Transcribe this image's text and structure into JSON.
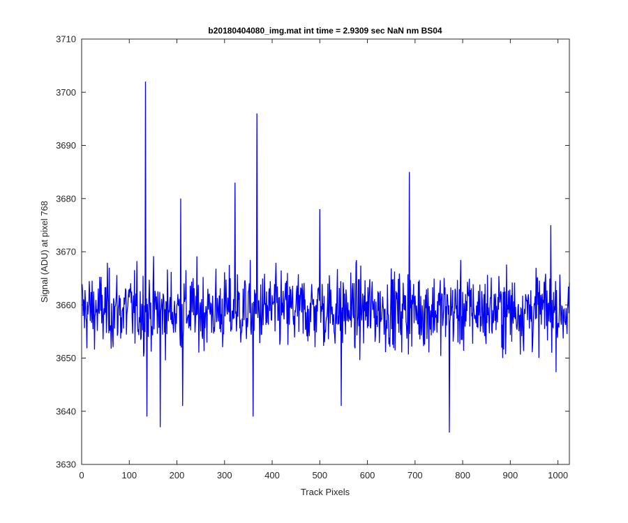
{
  "chart_data": {
    "type": "line",
    "title": "b20180404080_img.mat int time = 2.9309 sec  NaN nm BS04",
    "xlabel": "Track Pixels",
    "ylabel": "Signal (ADU) at pixel 768",
    "xlim": [
      0,
      1024
    ],
    "ylim": [
      3630,
      3710
    ],
    "xticks": [
      "0",
      "100",
      "200",
      "300",
      "400",
      "500",
      "600",
      "700",
      "800",
      "900",
      "1000"
    ],
    "yticks": [
      "3630",
      "3640",
      "3650",
      "3660",
      "3670",
      "3680",
      "3690",
      "3700",
      "3710"
    ],
    "grid": false,
    "line_color": "#0000ff",
    "series": [
      {
        "x_start": 1,
        "x_step": 1,
        "points": 1024,
        "baseline_estimate": 3659,
        "noise_range_typical": [
          3645,
          3673
        ],
        "notable_points": [
          {
            "x": 134,
            "y": 3702
          },
          {
            "x": 137,
            "y": 3639
          },
          {
            "x": 165,
            "y": 3637
          },
          {
            "x": 208,
            "y": 3680
          },
          {
            "x": 212,
            "y": 3641
          },
          {
            "x": 322,
            "y": 3683
          },
          {
            "x": 360,
            "y": 3639
          },
          {
            "x": 368,
            "y": 3696
          },
          {
            "x": 500,
            "y": 3678
          },
          {
            "x": 545,
            "y": 3641
          },
          {
            "x": 688,
            "y": 3685
          },
          {
            "x": 772,
            "y": 3636
          },
          {
            "x": 985,
            "y": 3675
          }
        ]
      }
    ]
  }
}
